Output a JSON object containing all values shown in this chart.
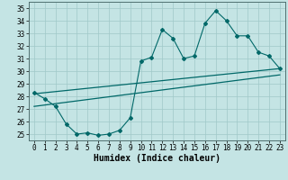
{
  "xlabel": "Humidex (Indice chaleur)",
  "bg_color": "#c4e4e4",
  "grid_color": "#a0c8c8",
  "line_color": "#006868",
  "xlim": [
    -0.5,
    23.5
  ],
  "ylim": [
    24.5,
    35.5
  ],
  "xticks": [
    0,
    1,
    2,
    3,
    4,
    5,
    6,
    7,
    8,
    9,
    10,
    11,
    12,
    13,
    14,
    15,
    16,
    17,
    18,
    19,
    20,
    21,
    22,
    23
  ],
  "yticks": [
    25,
    26,
    27,
    28,
    29,
    30,
    31,
    32,
    33,
    34,
    35
  ],
  "line1_x": [
    0,
    1,
    2,
    3,
    4,
    5,
    6,
    7,
    8,
    9,
    10,
    11,
    12,
    13,
    14,
    15,
    16,
    17,
    18,
    19,
    20,
    21,
    22,
    23
  ],
  "line1_y": [
    28.3,
    27.8,
    27.2,
    25.8,
    25.0,
    25.1,
    24.9,
    25.0,
    25.3,
    26.3,
    30.8,
    31.1,
    33.3,
    32.6,
    31.0,
    31.2,
    33.8,
    34.8,
    34.0,
    32.8,
    32.8,
    31.5,
    31.2,
    30.2
  ],
  "line2_x": [
    0,
    23
  ],
  "line2_y": [
    28.2,
    30.2
  ],
  "line3_x": [
    0,
    23
  ],
  "line3_y": [
    27.2,
    29.7
  ],
  "xlabel_fontsize": 7,
  "tick_fontsize": 5.5
}
